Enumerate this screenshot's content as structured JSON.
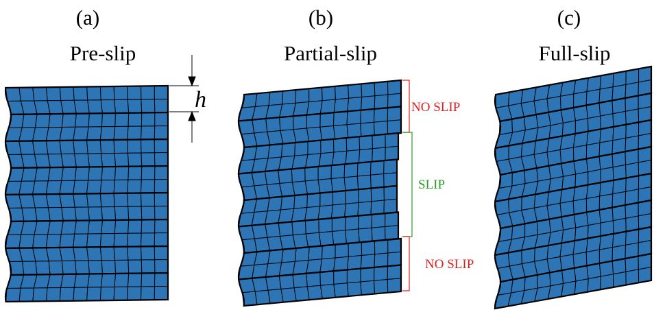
{
  "panels": [
    {
      "label": "(a)",
      "title": "Pre-slip"
    },
    {
      "label": "(b)",
      "title": "Partial-slip"
    },
    {
      "label": "(c)",
      "title": "Full-slip"
    }
  ],
  "annotations": {
    "h": "h",
    "no_slip_top": "NO SLIP",
    "slip": "SLIP",
    "no_slip_bottom": "NO SLIP"
  }
}
